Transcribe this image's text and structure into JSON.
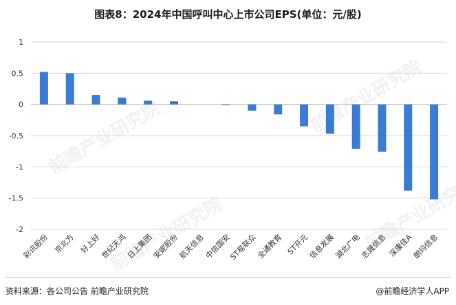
{
  "title": "图表8：2024年中国呼叫中心上市公司EPS(单位：元/股)",
  "source": "资料来源：各公司公告 前瞻产业研究院",
  "brand": "@前瞻经济学人APP",
  "watermark": "前瞻产业研究院",
  "colors": {
    "bar": "#3a7bd5",
    "grid": "#d9d9d9",
    "axis": "#bfbfbf",
    "text": "#333333"
  },
  "chart_data": {
    "type": "bar",
    "categories": [
      "彩讯股份",
      "京北方",
      "好上好",
      "世纪天鸿",
      "日上集团",
      "安妮股份",
      "航天信息",
      "中信国安",
      "ST易联众",
      "全通教育",
      "ST开元",
      "信息发展",
      "湖北广电",
      "志晟信息",
      "深康佳A",
      "朗玛信息"
    ],
    "values": [
      0.52,
      0.5,
      0.15,
      0.11,
      0.06,
      0.05,
      0.0,
      -0.01,
      -0.1,
      -0.16,
      -0.35,
      -0.47,
      -0.71,
      -0.76,
      -1.38,
      -1.52
    ],
    "ylim": [
      -2,
      1
    ],
    "yticks": [
      "1",
      "0.5",
      "0",
      "-0.5",
      "-1",
      "-1.5",
      "-2"
    ],
    "ytick_values": [
      1,
      0.5,
      0,
      -0.5,
      -1,
      -1.5,
      -2
    ],
    "grid": true
  }
}
